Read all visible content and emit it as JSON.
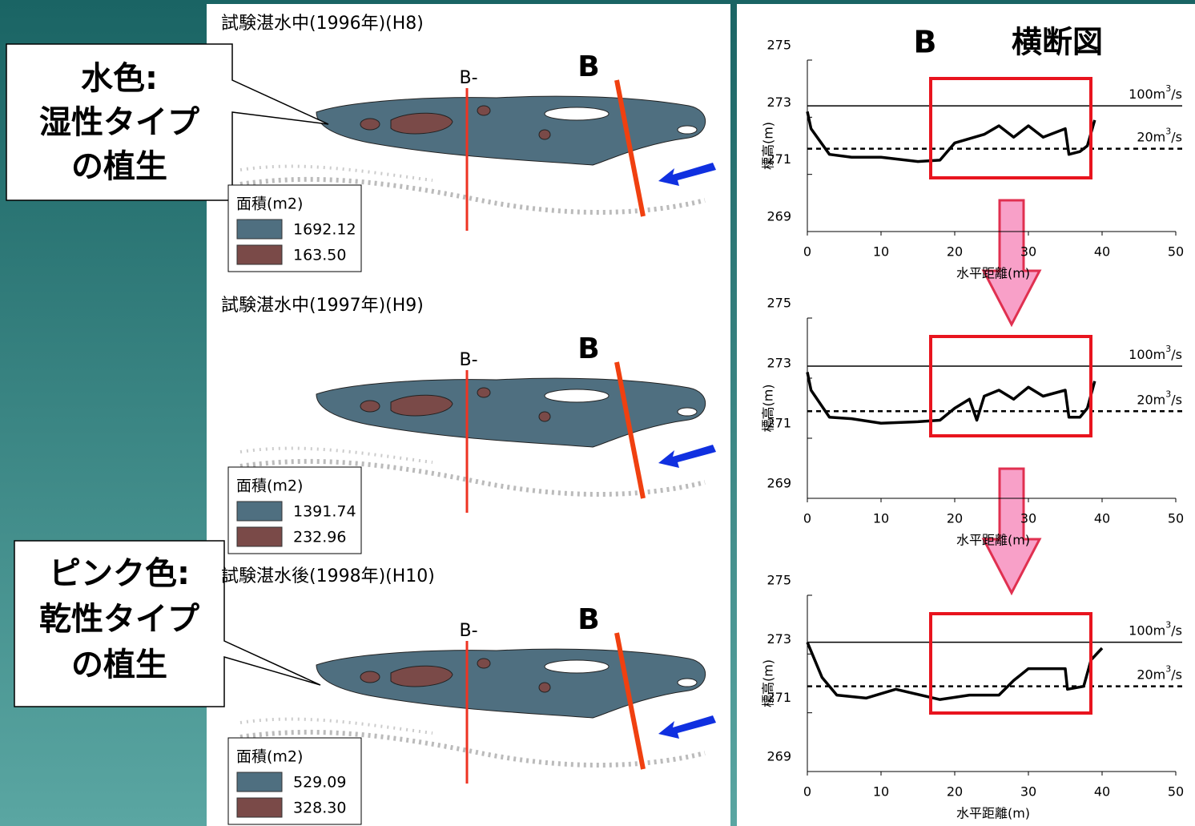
{
  "callouts": [
    {
      "lines": [
        "水色:",
        "湿性タイプ",
        "の植生"
      ]
    },
    {
      "lines": [
        "ピンク色:",
        "乾性タイプ",
        "の植生"
      ]
    }
  ],
  "maps": [
    {
      "title": "試験湛水中(1996年)(H8)",
      "section_label": "B-",
      "marker": "B",
      "legend": {
        "title": "面積(m2)",
        "items": [
          {
            "color": "#4f6f80",
            "label": "1692.12"
          },
          {
            "color": "#7a4a48",
            "label": "163.50"
          }
        ]
      }
    },
    {
      "title": "試験湛水中(1997年)(H9)",
      "section_label": "B-",
      "marker": "B",
      "legend": {
        "title": "面積(m2)",
        "items": [
          {
            "color": "#4f6f80",
            "label": "1391.74"
          },
          {
            "color": "#7a4a48",
            "label": "232.96"
          }
        ]
      }
    },
    {
      "title": "試験湛水後(1998年)(H10)",
      "section_label": "B-",
      "marker": "B",
      "legend": {
        "title": "面積(m2)",
        "items": [
          {
            "color": "#4f6f80",
            "label": "529.09"
          },
          {
            "color": "#7a4a48",
            "label": "328.30"
          }
        ]
      }
    }
  ],
  "cross_section_title": {
    "letter": "B",
    "text": "横断図"
  },
  "cross_sections": [
    {
      "xlim": [
        0,
        50
      ],
      "ylim": [
        269,
        275
      ],
      "xticks": [
        0,
        10,
        20,
        30,
        40,
        50
      ],
      "yticks": [
        269,
        271,
        273,
        275
      ],
      "xlabel": "水平距離(m)",
      "ylabel": "標高(m)",
      "levels": [
        {
          "value": 273.4,
          "dashed": false,
          "label": {
            "base": "100m",
            "sup": "3",
            "unit": "/s"
          }
        },
        {
          "value": 271.9,
          "dashed": true,
          "label": {
            "base": "20m",
            "sup": "3",
            "unit": "/s"
          }
        }
      ],
      "profile": {
        "x": [
          0,
          0.5,
          3,
          6,
          10,
          15,
          18,
          20,
          24,
          26,
          28,
          30,
          32,
          35,
          35.5,
          37,
          38,
          39
        ],
        "y": [
          273.2,
          272.6,
          271.7,
          271.6,
          271.6,
          271.45,
          271.5,
          272.1,
          272.4,
          272.7,
          272.3,
          272.7,
          272.3,
          272.6,
          271.7,
          271.8,
          272.0,
          272.9
        ]
      }
    },
    {
      "xlim": [
        0,
        50
      ],
      "ylim": [
        269,
        275
      ],
      "xticks": [
        0,
        10,
        20,
        30,
        40,
        50
      ],
      "yticks": [
        269,
        271,
        273,
        275
      ],
      "xlabel": "水平距離(m)",
      "ylabel": "標高(m)",
      "levels": [
        {
          "value": 273.4,
          "dashed": false,
          "label": {
            "base": "100m",
            "sup": "3",
            "unit": "/s"
          }
        },
        {
          "value": 271.9,
          "dashed": true,
          "label": {
            "base": "20m",
            "sup": "3",
            "unit": "/s"
          }
        }
      ],
      "profile": {
        "x": [
          0,
          0.5,
          3,
          6,
          10,
          15,
          18,
          20,
          22,
          23,
          24,
          26,
          28,
          30,
          32,
          35,
          35.5,
          37,
          38,
          39
        ],
        "y": [
          273.2,
          272.6,
          271.7,
          271.65,
          271.5,
          271.55,
          271.6,
          272.0,
          272.3,
          271.6,
          272.4,
          272.6,
          272.3,
          272.7,
          272.4,
          272.6,
          271.7,
          271.7,
          272.0,
          272.9
        ]
      }
    },
    {
      "xlim": [
        0,
        50
      ],
      "ylim": [
        269,
        275
      ],
      "xticks": [
        0,
        10,
        20,
        30,
        40,
        50
      ],
      "yticks": [
        269,
        271,
        273,
        275
      ],
      "xlabel": "水平距離(m)",
      "ylabel": "標高(m)",
      "levels": [
        {
          "value": 273.4,
          "dashed": false,
          "label": {
            "base": "100m",
            "sup": "3",
            "unit": "/s"
          }
        },
        {
          "value": 271.9,
          "dashed": true,
          "label": {
            "base": "20m",
            "sup": "3",
            "unit": "/s"
          }
        }
      ],
      "profile": {
        "x": [
          0,
          2,
          4,
          8,
          12,
          18,
          22,
          26,
          28,
          30,
          35,
          35.3,
          37.5,
          38.5,
          40
        ],
        "y": [
          273.4,
          272.2,
          271.6,
          271.5,
          271.8,
          271.45,
          271.6,
          271.6,
          272.1,
          272.5,
          272.5,
          271.8,
          271.9,
          272.8,
          273.2
        ]
      }
    }
  ]
}
